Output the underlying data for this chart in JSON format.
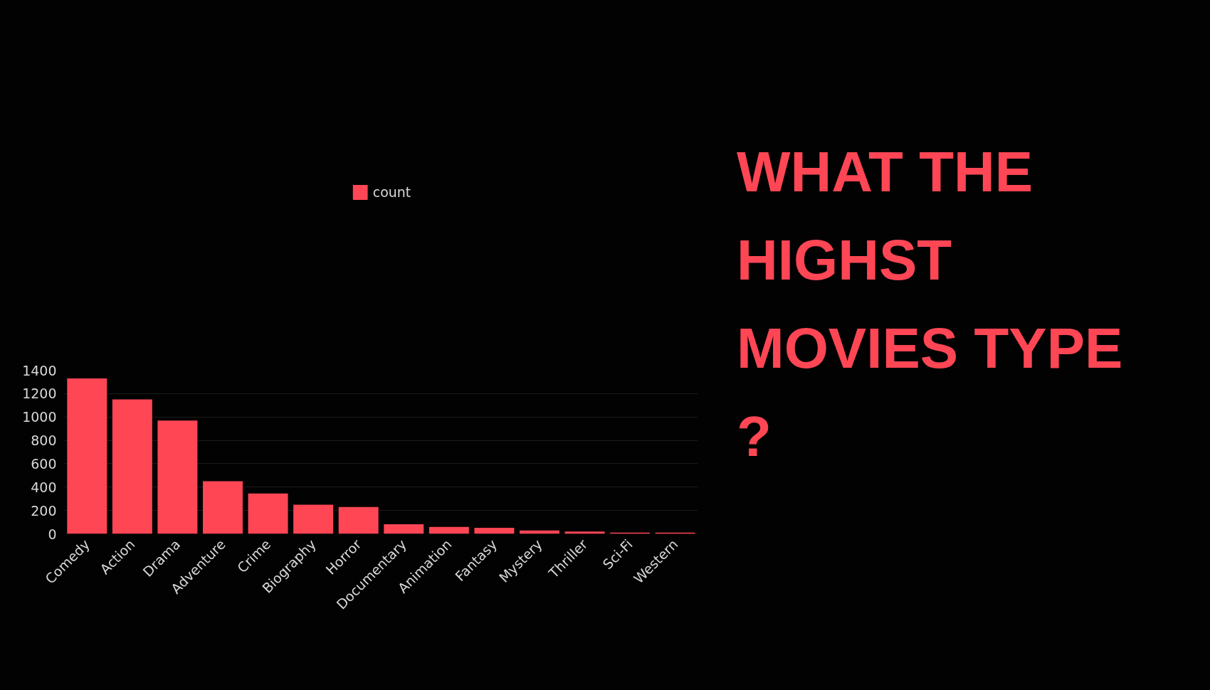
{
  "chart_data": {
    "type": "bar",
    "title": "WHAT THE HIGHST MOVIES TYPE ?",
    "categories": [
      "Comedy",
      "Action",
      "Drama",
      "Adventure",
      "Crime",
      "Biography",
      "Horror",
      "Documentary",
      "Animation",
      "Fantasy",
      "Mystery",
      "Thriller",
      "Sci-Fi",
      "Western"
    ],
    "series": [
      {
        "name": "count",
        "color": "#ff4655",
        "values": [
          1330,
          1150,
          970,
          450,
          345,
          250,
          230,
          82,
          59,
          51,
          29,
          20,
          11,
          11
        ]
      }
    ],
    "ylim": [
      0,
      1400
    ],
    "yticks": [
      0,
      200,
      400,
      600,
      800,
      1000,
      1200,
      1400
    ],
    "grid": "y",
    "legend": "top"
  }
}
